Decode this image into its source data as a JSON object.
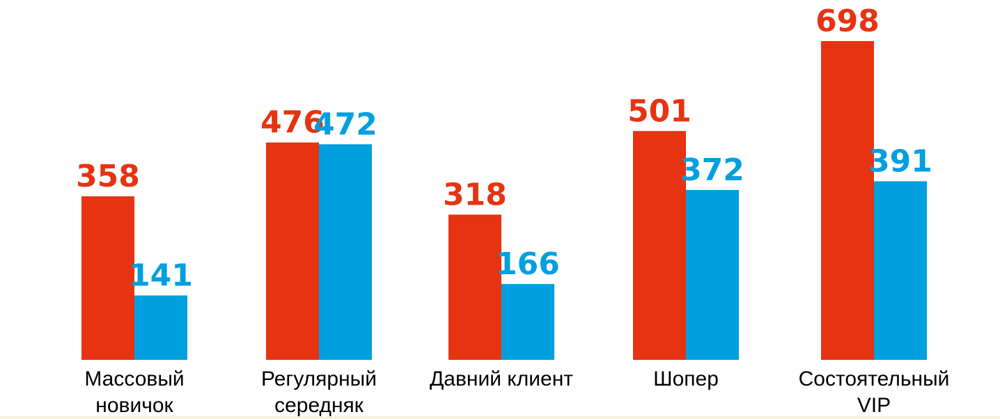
{
  "chart_data": {
    "type": "bar",
    "categories": [
      [
        "Массовый",
        "новичок"
      ],
      [
        "Регулярный",
        "середняк"
      ],
      [
        "Давний клиент"
      ],
      [
        "Шопер"
      ],
      [
        "Состоятельный",
        "VIP"
      ]
    ],
    "series": [
      {
        "values": [
          358,
          476,
          318,
          501,
          698
        ],
        "color": "#e63312"
      },
      {
        "values": [
          141,
          472,
          166,
          372,
          391
        ],
        "color": "#009fdf"
      }
    ],
    "title": "",
    "xlabel": "",
    "ylabel": "",
    "ylim": [
      0,
      698
    ],
    "grid": false,
    "legend": "none"
  }
}
